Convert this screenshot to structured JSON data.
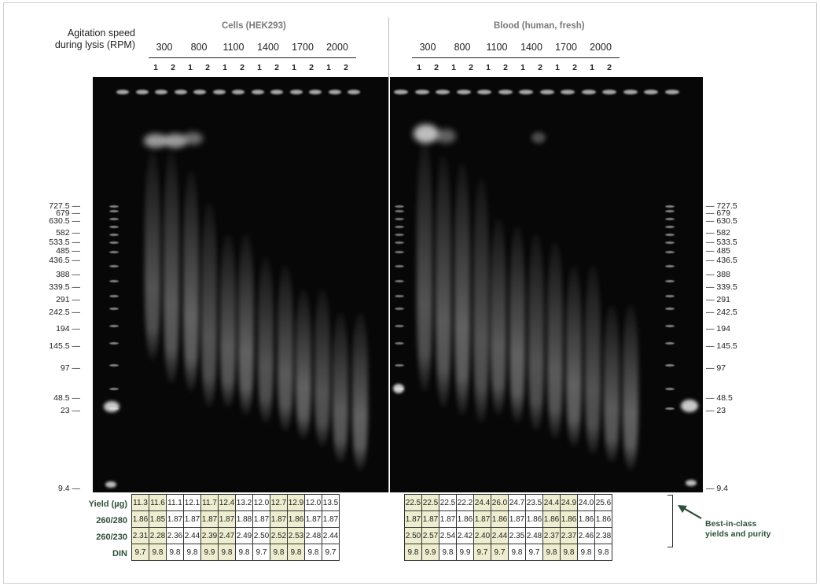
{
  "header": {
    "agitation_label": "Agitation speed\nduring lysis (RPM)",
    "group_cells": "Cells (HEK293)",
    "group_blood": "Blood (human, fresh)"
  },
  "rpm_groups": [
    "300",
    "800",
    "1100",
    "1400",
    "1700",
    "2000"
  ],
  "lane_labels": [
    "1",
    "2"
  ],
  "markers": [
    "727.5",
    "679",
    "630.5",
    "582",
    "533.5",
    "485",
    "436.5",
    "388",
    "339.5",
    "291",
    "242.5",
    "194",
    "145.5",
    "97",
    "48.5",
    "23",
    "9.4"
  ],
  "table": {
    "row_labels": [
      "Yield (µg)",
      "260/280",
      "260/230",
      "DIN"
    ],
    "cells": {
      "yield": [
        "11.3",
        "11.6",
        "11.1",
        "12.1",
        "11.7",
        "12.4",
        "13.2",
        "12.0",
        "12.7",
        "12.9",
        "12.0",
        "13.5"
      ],
      "r280": [
        "1.86",
        "1.85",
        "1.87",
        "1.87",
        "1.87",
        "1.87",
        "1.88",
        "1.87",
        "1.87",
        "1.86",
        "1.87",
        "1.87"
      ],
      "r230": [
        "2.31",
        "2.28",
        "2.36",
        "2.44",
        "2.39",
        "2.47",
        "2.49",
        "2.50",
        "2.52",
        "2.53",
        "2.48",
        "2.44"
      ],
      "din": [
        "9.7",
        "9.8",
        "9.8",
        "9.8",
        "9.9",
        "9.8",
        "9.8",
        "9.7",
        "9.8",
        "9.8",
        "9.8",
        "9.7"
      ]
    },
    "blood": {
      "yield": [
        "22.5",
        "22.5",
        "22.5",
        "22.2",
        "24.4",
        "26.0",
        "24.7",
        "23.5",
        "24.4",
        "24.9",
        "24.0",
        "25.6"
      ],
      "r280": [
        "1.87",
        "1.87",
        "1.87",
        "1.86",
        "1.87",
        "1.86",
        "1.87",
        "1.86",
        "1.86",
        "1.86",
        "1.86",
        "1.86"
      ],
      "r230": [
        "2.50",
        "2.57",
        "2.54",
        "2.42",
        "2.40",
        "2.44",
        "2.35",
        "2.48",
        "2.37",
        "2.37",
        "2.46",
        "2.38"
      ],
      "din": [
        "9.8",
        "9.9",
        "9.8",
        "9.9",
        "9.7",
        "9.7",
        "9.8",
        "9.7",
        "9.8",
        "9.8",
        "9.8",
        "9.8"
      ]
    }
  },
  "annotation": "Best-in-class\nyields and purity",
  "colors": {
    "highlight": "#eeedcf",
    "label_green": "#2f4f3a",
    "gel": "#070707"
  }
}
